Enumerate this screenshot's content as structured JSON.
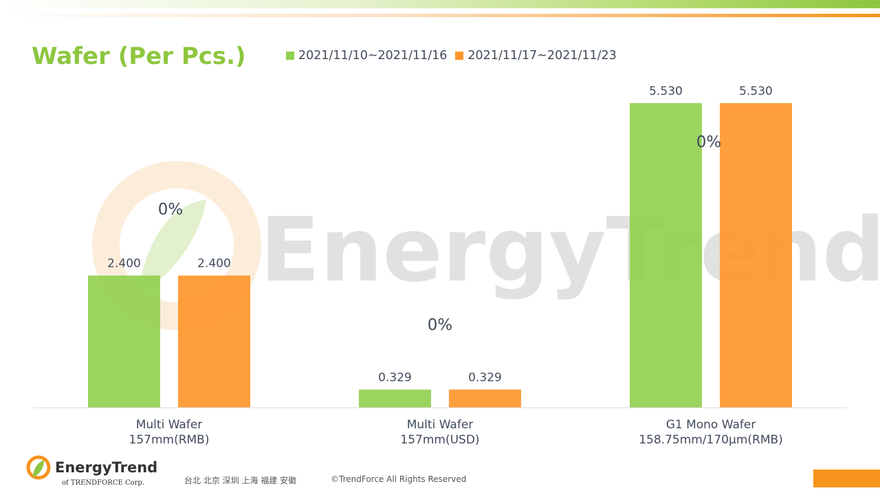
{
  "title": "Wafer (Per Pcs.)",
  "legend": [
    {
      "label": "2021/11/10~2021/11/16",
      "color": "#92d050"
    },
    {
      "label": "2021/11/17~2021/11/23",
      "color": "#ff962d"
    }
  ],
  "watermark": "EnergyTrend",
  "chart_data": {
    "type": "bar",
    "title": "Wafer (Per Pcs.)",
    "categories": [
      [
        "Multi Wafer",
        "157mm(RMB)"
      ],
      [
        "Multi Wafer",
        "157mm(USD)"
      ],
      [
        "G1 Mono Wafer",
        "158.75mm/170μm(RMB)"
      ]
    ],
    "series": [
      {
        "name": "2021/11/10~2021/11/16",
        "values": [
          2.4,
          0.329,
          5.53
        ],
        "labels": [
          "2.400",
          "0.329",
          "5.530"
        ]
      },
      {
        "name": "2021/11/17~2021/11/23",
        "values": [
          2.4,
          0.329,
          5.53
        ],
        "labels": [
          "2.400",
          "0.329",
          "5.530"
        ]
      }
    ],
    "change_labels": [
      "0%",
      "0%",
      "0%"
    ],
    "ylim": [
      0,
      5.8
    ],
    "grid": false
  },
  "footer": {
    "brand": "EnergyTrend",
    "sub": "of TRENDFORCE Corp.",
    "cities": "台北  北京  深圳  上海  福建  安徽",
    "copyright": "©TrendForce All Rights Reserved"
  }
}
